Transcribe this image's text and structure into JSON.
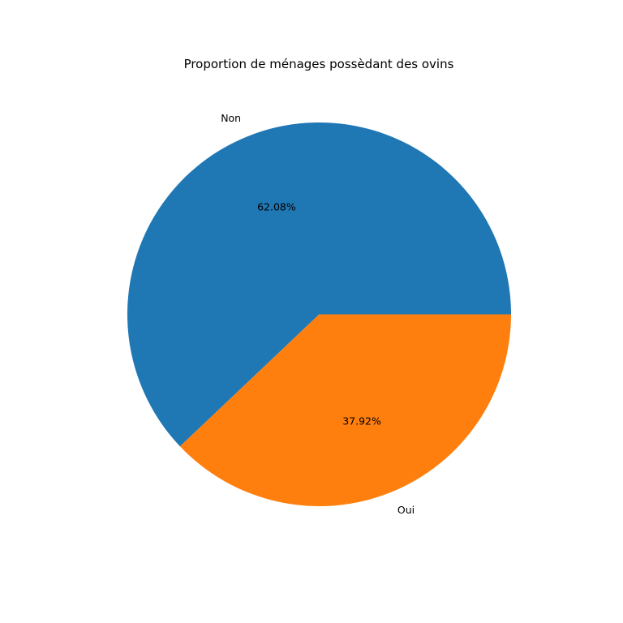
{
  "chart_data": {
    "type": "pie",
    "title": "Proportion de ménages possèdant des ovins",
    "slices": [
      {
        "label": "Non",
        "value": 62.08,
        "pct_label": "62.08%",
        "color": "#1f77b4"
      },
      {
        "label": "Oui",
        "value": 37.92,
        "pct_label": "37.92%",
        "color": "#ff7f0e"
      }
    ],
    "start_angle": "0° (3 o'clock), counter-clockwise",
    "legend": "none"
  }
}
